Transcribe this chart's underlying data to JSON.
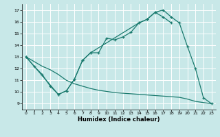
{
  "bg_color": "#c8e8e8",
  "grid_color": "#ffffff",
  "line_color": "#1a7a6e",
  "xlabel": "Humidex (Indice chaleur)",
  "xlim": [
    -0.5,
    23.5
  ],
  "ylim": [
    8.5,
    17.5
  ],
  "xticks": [
    0,
    1,
    2,
    3,
    4,
    5,
    6,
    7,
    8,
    9,
    10,
    11,
    12,
    13,
    14,
    15,
    16,
    17,
    18,
    19,
    20,
    21,
    22,
    23
  ],
  "yticks": [
    9,
    10,
    11,
    12,
    13,
    14,
    15,
    16,
    17
  ],
  "line1_x": [
    0,
    1,
    2,
    3,
    4,
    5,
    6,
    7,
    8,
    9,
    10,
    11,
    12,
    13,
    14,
    15,
    16,
    17,
    18
  ],
  "line1_y": [
    13.0,
    12.2,
    11.5,
    10.5,
    9.8,
    10.1,
    11.1,
    12.7,
    13.35,
    13.35,
    14.6,
    14.45,
    14.7,
    15.1,
    15.9,
    16.2,
    16.8,
    16.4,
    15.9
  ],
  "line2_x": [
    0,
    1,
    2,
    3,
    4,
    5,
    6,
    7,
    8,
    9,
    10,
    11,
    12,
    13,
    14,
    15,
    16,
    17,
    18,
    19,
    20,
    21,
    22,
    23
  ],
  "line2_y": [
    13.0,
    12.6,
    12.2,
    11.9,
    11.5,
    11.0,
    10.7,
    10.5,
    10.3,
    10.15,
    10.05,
    9.95,
    9.9,
    9.85,
    9.8,
    9.75,
    9.7,
    9.65,
    9.6,
    9.55,
    9.4,
    9.2,
    9.1,
    9.0
  ],
  "line3_x": [
    0,
    4,
    5,
    6,
    7,
    8,
    14,
    15,
    16,
    17,
    18,
    19,
    20,
    21,
    22,
    23
  ],
  "line3_y": [
    13.0,
    9.8,
    10.1,
    11.1,
    12.7,
    13.35,
    15.9,
    16.2,
    16.8,
    17.0,
    16.4,
    15.9,
    13.9,
    12.0,
    9.5,
    9.0
  ]
}
